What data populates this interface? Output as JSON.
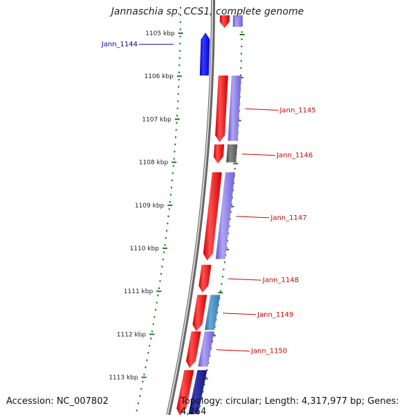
{
  "title": "Jannaschia sp. CCS1, complete genome",
  "accession": "Accession: NC_007802",
  "stats": "Topology: circular; Length: 4,317,977 bp; Genes: 4,264",
  "scale": {
    "unit_color": "#1a7a1a",
    "labels": [
      {
        "kbp": 1105,
        "label": "1105 kbp"
      },
      {
        "kbp": 1106,
        "label": "1106 kbp"
      },
      {
        "kbp": 1107,
        "label": "1107 kbp"
      },
      {
        "kbp": 1108,
        "label": "1108 kbp"
      },
      {
        "kbp": 1109,
        "label": "1109 kbp"
      },
      {
        "kbp": 1110,
        "label": "1110 kbp"
      },
      {
        "kbp": 1111,
        "label": "1111 kbp"
      },
      {
        "kbp": 1112,
        "label": "1112 kbp"
      },
      {
        "kbp": 1113,
        "label": "1113 kbp"
      }
    ]
  },
  "colors": {
    "reverse_gene": "#1010e0",
    "forward_gene": "#e01010",
    "cog_purple": "#7766dd",
    "cog_gray": "#555555",
    "cog_teal": "#4488bb",
    "cog_navy": "#1a1a88",
    "backbone": "#888888",
    "label_blue": "#0000aa",
    "label_red": "#cc0000"
  },
  "genes": [
    {
      "name": "",
      "strand": "forward",
      "start_kbp": 1104.6,
      "end_kbp": 1104.9,
      "cog": "cog_purple"
    },
    {
      "name": "Jann_1144",
      "strand": "reverse",
      "start_kbp": 1105.0,
      "end_kbp": 1106.0,
      "cog": ""
    },
    {
      "name": "Jann_1145",
      "strand": "forward",
      "start_kbp": 1106.0,
      "end_kbp": 1107.55,
      "cog": "cog_purple"
    },
    {
      "name": "Jann_1146",
      "strand": "forward",
      "start_kbp": 1107.6,
      "end_kbp": 1108.05,
      "cog": "cog_gray"
    },
    {
      "name": "Jann_1147",
      "strand": "forward",
      "start_kbp": 1108.25,
      "end_kbp": 1110.3,
      "cog": "cog_purple"
    },
    {
      "name": "Jann_1148",
      "strand": "forward",
      "start_kbp": 1110.4,
      "end_kbp": 1111.05,
      "cog": ""
    },
    {
      "name": "Jann_1149",
      "strand": "forward",
      "start_kbp": 1111.1,
      "end_kbp": 1111.95,
      "cog": "cog_teal"
    },
    {
      "name": "Jann_1150",
      "strand": "forward",
      "start_kbp": 1111.95,
      "end_kbp": 1112.8,
      "cog": "cog_purple"
    },
    {
      "name": "",
      "strand": "forward",
      "start_kbp": 1112.85,
      "end_kbp": 1113.9,
      "cog": "cog_navy"
    }
  ]
}
